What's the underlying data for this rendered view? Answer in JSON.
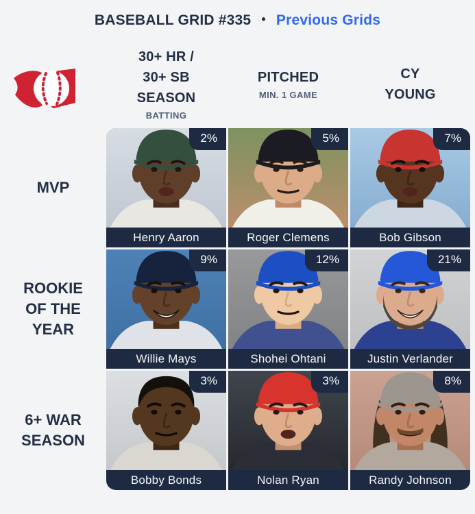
{
  "header": {
    "title": "BASEBALL GRID #335",
    "separator": "•",
    "link_label": "Previous Grids"
  },
  "columns": [
    {
      "title": "30+ HR /\n30+ SB\nSEASON",
      "subtitle": "BATTING"
    },
    {
      "title": "PITCHED",
      "subtitle": "MIN. 1 GAME"
    },
    {
      "title": "CY\nYOUNG",
      "subtitle": ""
    }
  ],
  "rows": [
    {
      "label": "MVP"
    },
    {
      "label": "ROOKIE\nOF THE\nYEAR"
    },
    {
      "label": "6+ WAR\nSEASON"
    }
  ],
  "grid": {
    "cells": [
      {
        "name": "Henry Aaron",
        "pct": "2%",
        "portrait": {
          "bg": [
            "#d8dde4",
            "#bfc7d1"
          ],
          "skin": "#5f3e2a",
          "neck": "#4a2e1e",
          "feat": "#1f1410",
          "jersey": "#e9e7e1",
          "cap": "#33503f",
          "mouth": "open"
        }
      },
      {
        "name": "Roger Clemens",
        "pct": "5%",
        "portrait": {
          "bg": [
            "#7d9360",
            "#bb8e6b"
          ],
          "skin": "#dcab87",
          "neck": "#c08a66",
          "feat": "#2a1c12",
          "jersey": "#f0efe8",
          "cap": "#1b1b24",
          "mouth": "line"
        }
      },
      {
        "name": "Bob Gibson",
        "pct": "7%",
        "portrait": {
          "bg": [
            "#a9cae5",
            "#86add0"
          ],
          "skin": "#55351f",
          "neck": "#3f2617",
          "feat": "#140d08",
          "jersey": "#cdd7e2",
          "cap": "#c8342f",
          "mouth": "open"
        }
      },
      {
        "name": "Willie Mays",
        "pct": "9%",
        "portrait": {
          "bg": [
            "#4e82b7",
            "#3f70a4"
          ],
          "skin": "#63412a",
          "neck": "#4c2f1d",
          "feat": "#170f0a",
          "jersey": "#dfe3e8",
          "cap": "#17233d",
          "mouth": "smile"
        }
      },
      {
        "name": "Shohei Ohtani",
        "pct": "12%",
        "portrait": {
          "bg": [
            "#97999b",
            "#818385"
          ],
          "skin": "#eec9a4",
          "neck": "#d8ad83",
          "feat": "#241812",
          "jersey": "#41508f",
          "cap": "#1d4fc4",
          "hair": "#191310",
          "mouth": "line"
        }
      },
      {
        "name": "Justin Verlander",
        "pct": "21%",
        "portrait": {
          "bg": [
            "#d1d3d5",
            "#bec0c2"
          ],
          "skin": "#dcab8d",
          "neck": "#c08f72",
          "feat": "#33261c",
          "jersey": "#2c4190",
          "cap": "#2458d8",
          "beard": "#54453a",
          "mouth": "smile"
        }
      },
      {
        "name": "Bobby Bonds",
        "pct": "3%",
        "portrait": {
          "bg": [
            "#dbdfe2",
            "#c5c9cc"
          ],
          "skin": "#53371f",
          "neck": "#3e2815",
          "feat": "#120c08",
          "jersey": "#dad6d0",
          "hair": "#15100b",
          "mouth": "line"
        }
      },
      {
        "name": "Nolan Ryan",
        "pct": "3%",
        "portrait": {
          "bg": [
            "#41454d",
            "#26292f"
          ],
          "skin": "#deae8c",
          "neck": "#c38f6c",
          "feat": "#241712",
          "jersey": "#2b2e36",
          "cap": "#d6342c",
          "mouth": "open"
        }
      },
      {
        "name": "Randy Johnson",
        "pct": "8%",
        "portrait": {
          "bg": [
            "#cba393",
            "#b58a79"
          ],
          "skin": "#c28668",
          "neck": "#a96e52",
          "feat": "#2e1f15",
          "jersey": "#b3a89e",
          "cap": "#9c968e",
          "hairLong": "#42301f",
          "mustache": "#6b4a2e",
          "mouth": "line"
        }
      }
    ]
  },
  "colors": {
    "background": "#f3f4f6",
    "navy": "#1e2a42",
    "heading_text": "#242f46",
    "subtitle_text": "#51607a",
    "link_blue": "#2d6bf2",
    "logo_red": "#cf2233"
  }
}
